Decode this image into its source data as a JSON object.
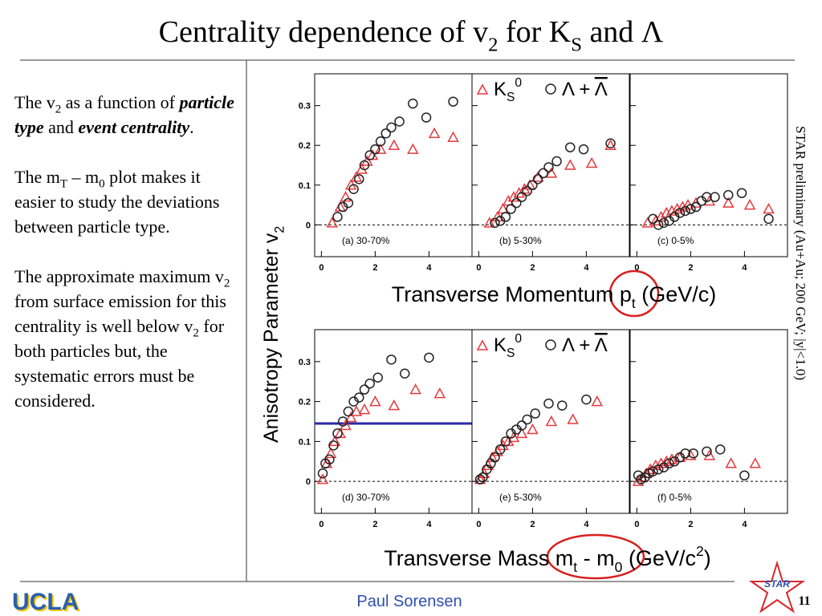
{
  "title": [
    {
      "t": "Centrality dependence of v"
    },
    {
      "t": "2",
      "sub": true
    },
    {
      "t": " for K"
    },
    {
      "t": "S",
      "sub": true
    },
    {
      "t": " and Λ"
    }
  ],
  "left_text": [
    [
      {
        "t": "The v"
      },
      {
        "t": "2",
        "sub": true
      },
      {
        "t": " as a function of "
      },
      {
        "t": "particle type",
        "bi": true
      },
      {
        "t": " and "
      },
      {
        "t": "event centrality",
        "bi": true
      },
      {
        "t": "."
      }
    ],
    [
      {
        "t": "The m"
      },
      {
        "t": "T",
        "sub": true
      },
      {
        "t": " – m"
      },
      {
        "t": "0",
        "sub": true
      },
      {
        "t": " plot makes it easier to study the deviations between particle type."
      }
    ],
    [
      {
        "t": "The approximate maximum v"
      },
      {
        "t": "2",
        "sub": true
      },
      {
        "t": " from surface emission for this centrality is well below v"
      },
      {
        "t": "2",
        "sub": true
      },
      {
        "t": " for both particles but, the systematic errors must be considered."
      }
    ]
  ],
  "figure": {
    "type": "scatter",
    "y_label": [
      {
        "t": "Anisotropy Parameter v"
      },
      {
        "t": "2",
        "sub": true
      }
    ],
    "x_labels": [
      [
        {
          "t": "Transverse Momentum p"
        },
        {
          "t": "t",
          "sub": true
        },
        {
          "t": " (GeV/c)"
        }
      ],
      [
        {
          "t": "Transverse Mass m"
        },
        {
          "t": "t",
          "sub": true
        },
        {
          "t": " - m"
        },
        {
          "t": "0",
          "sub": true
        },
        {
          "t": " (GeV/c"
        },
        {
          "t": "2",
          "sup": true
        },
        {
          "t": ")"
        }
      ]
    ],
    "legend": {
      "ks": [
        {
          "t": "K"
        },
        {
          "t": "S",
          "sub": true
        },
        {
          "t": "0",
          "sup": true
        }
      ],
      "lambda": [
        {
          "t": "Λ + "
        },
        {
          "t": "Λ",
          "bar": true
        }
      ]
    },
    "ks_color": "#e8383d",
    "lambda_color": "#222222",
    "xlim": [
      -0.25,
      5.6
    ],
    "ylim": [
      -0.08,
      0.38
    ],
    "xticks": [
      0,
      2,
      4
    ],
    "yticks": [
      0,
      0.1,
      0.2,
      0.3
    ],
    "blue_line": {
      "panel": 3,
      "value": 0.145,
      "color": "#2a2aa8"
    },
    "panels": [
      {
        "label": "(a) 30-70%",
        "ks": {
          "x": [
            0.4,
            0.7,
            0.9,
            1.1,
            1.3,
            1.5,
            1.7,
            1.9,
            2.2,
            2.7,
            3.4,
            4.2,
            4.9
          ],
          "y": [
            0.005,
            0.045,
            0.07,
            0.1,
            0.12,
            0.14,
            0.16,
            0.175,
            0.19,
            0.2,
            0.19,
            0.23,
            0.22
          ]
        },
        "lambda": {
          "x": [
            0.6,
            0.8,
            1.0,
            1.2,
            1.4,
            1.6,
            1.8,
            2.0,
            2.2,
            2.4,
            2.6,
            2.9,
            3.4,
            3.9,
            4.9
          ],
          "y": [
            0.02,
            0.045,
            0.055,
            0.09,
            0.115,
            0.15,
            0.175,
            0.19,
            0.21,
            0.23,
            0.245,
            0.26,
            0.305,
            0.27,
            0.31
          ]
        }
      },
      {
        "label": "(b) 5-30%",
        "ks": {
          "x": [
            0.4,
            0.7,
            0.9,
            1.1,
            1.3,
            1.5,
            1.7,
            1.9,
            2.2,
            2.7,
            3.4,
            4.2,
            4.9
          ],
          "y": [
            0.005,
            0.02,
            0.04,
            0.06,
            0.07,
            0.08,
            0.09,
            0.1,
            0.12,
            0.13,
            0.15,
            0.155,
            0.2
          ]
        },
        "lambda": {
          "x": [
            0.6,
            0.8,
            1.0,
            1.2,
            1.4,
            1.6,
            1.8,
            2.0,
            2.2,
            2.4,
            2.6,
            2.9,
            3.4,
            3.9,
            4.9
          ],
          "y": [
            0.005,
            0.01,
            0.02,
            0.04,
            0.055,
            0.07,
            0.085,
            0.1,
            0.115,
            0.13,
            0.145,
            0.16,
            0.195,
            0.19,
            0.205
          ]
        }
      },
      {
        "label": "(c) 0-5%",
        "ks": {
          "x": [
            0.4,
            0.7,
            0.9,
            1.1,
            1.3,
            1.5,
            1.7,
            1.9,
            2.2,
            2.7,
            3.4,
            4.2,
            4.9
          ],
          "y": [
            0.005,
            0.01,
            0.02,
            0.03,
            0.035,
            0.04,
            0.045,
            0.05,
            0.055,
            0.06,
            0.055,
            0.05,
            0.04
          ]
        },
        "lambda": {
          "x": [
            0.6,
            0.8,
            1.0,
            1.2,
            1.4,
            1.6,
            1.8,
            2.0,
            2.2,
            2.4,
            2.6,
            2.9,
            3.4,
            3.9,
            4.9
          ],
          "y": [
            0.015,
            0.0,
            0.005,
            0.01,
            0.02,
            0.03,
            0.035,
            0.04,
            0.045,
            0.06,
            0.07,
            0.07,
            0.075,
            0.08,
            0.015
          ]
        }
      },
      {
        "label": "(d) 30-70%",
        "ks": {
          "x": [
            0.05,
            0.2,
            0.35,
            0.5,
            0.7,
            0.9,
            1.1,
            1.3,
            1.6,
            2.0,
            2.7,
            3.5,
            4.4
          ],
          "y": [
            0.005,
            0.045,
            0.07,
            0.1,
            0.12,
            0.14,
            0.16,
            0.175,
            0.18,
            0.2,
            0.19,
            0.23,
            0.22
          ]
        },
        "lambda": {
          "x": [
            0.05,
            0.15,
            0.3,
            0.45,
            0.6,
            0.8,
            1.0,
            1.2,
            1.4,
            1.6,
            1.8,
            2.1,
            2.6,
            3.1,
            4.0
          ],
          "y": [
            0.02,
            0.045,
            0.055,
            0.09,
            0.12,
            0.15,
            0.175,
            0.2,
            0.21,
            0.23,
            0.245,
            0.26,
            0.305,
            0.27,
            0.31
          ]
        }
      },
      {
        "label": "(e) 5-30%",
        "ks": {
          "x": [
            0.05,
            0.2,
            0.35,
            0.5,
            0.7,
            0.9,
            1.1,
            1.3,
            1.6,
            2.0,
            2.7,
            3.5,
            4.4
          ],
          "y": [
            0.005,
            0.02,
            0.04,
            0.06,
            0.075,
            0.09,
            0.1,
            0.11,
            0.12,
            0.13,
            0.15,
            0.155,
            0.2
          ]
        },
        "lambda": {
          "x": [
            0.05,
            0.15,
            0.3,
            0.45,
            0.6,
            0.8,
            1.0,
            1.2,
            1.4,
            1.6,
            1.8,
            2.1,
            2.6,
            3.1,
            4.0
          ],
          "y": [
            0.005,
            0.01,
            0.03,
            0.045,
            0.06,
            0.08,
            0.1,
            0.12,
            0.13,
            0.14,
            0.155,
            0.17,
            0.195,
            0.19,
            0.205
          ]
        }
      },
      {
        "label": "(f) 0-5%",
        "ks": {
          "x": [
            0.05,
            0.2,
            0.35,
            0.5,
            0.7,
            0.9,
            1.1,
            1.3,
            1.6,
            2.0,
            2.7,
            3.5,
            4.4
          ],
          "y": [
            0.0,
            0.01,
            0.02,
            0.03,
            0.04,
            0.045,
            0.05,
            0.055,
            0.06,
            0.065,
            0.065,
            0.045,
            0.045
          ]
        },
        "lambda": {
          "x": [
            0.05,
            0.15,
            0.3,
            0.45,
            0.6,
            0.8,
            1.0,
            1.2,
            1.4,
            1.6,
            1.8,
            2.1,
            2.6,
            3.1,
            4.0
          ],
          "y": [
            0.015,
            0.005,
            0.01,
            0.02,
            0.025,
            0.03,
            0.035,
            0.045,
            0.05,
            0.06,
            0.07,
            0.07,
            0.075,
            0.08,
            0.015
          ]
        }
      }
    ]
  },
  "side_note": "STAR preliminary (Au+Au; 200 GeV; |y|<1.0)",
  "footer": {
    "left_logo": "UCLA",
    "author": "Paul Sorensen",
    "right_logo": "STAR",
    "page": "11"
  }
}
